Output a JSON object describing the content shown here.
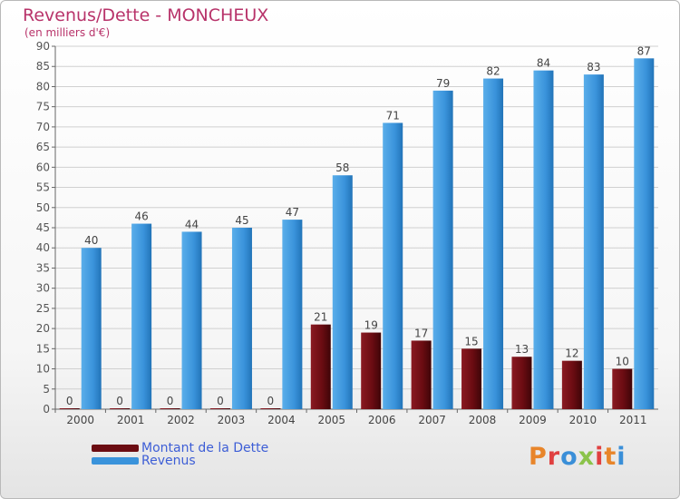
{
  "header": {
    "title": "Revenus/Dette - MONCHEUX",
    "subtitle": "(en milliers d'€)"
  },
  "legend": {
    "items": [
      {
        "label": "Montant de la Dette",
        "color": "#6b0c12"
      },
      {
        "label": "Revenus",
        "color": "#3a93db"
      }
    ]
  },
  "logo": {
    "text": "Proxiti",
    "p": "P",
    "r": "r",
    "o": "o",
    "x": "x",
    "i": "i",
    "t": "t",
    "i2": "i"
  },
  "colors": {
    "debt": "#6b0c12",
    "revenue": "#3a93db",
    "title": "#b8336a",
    "grid": "#d0d0d0"
  },
  "chart_data": {
    "type": "bar",
    "title": "Revenus/Dette - MONCHEUX",
    "ylabel": "(en milliers d'€)",
    "categories": [
      "2000",
      "2001",
      "2002",
      "2003",
      "2004",
      "2005",
      "2006",
      "2007",
      "2008",
      "2009",
      "2010",
      "2011"
    ],
    "series": [
      {
        "name": "Montant de la Dette",
        "values": [
          0,
          0,
          0,
          0,
          0,
          21,
          19,
          17,
          15,
          13,
          12,
          10
        ]
      },
      {
        "name": "Revenus",
        "values": [
          40,
          46,
          44,
          45,
          47,
          58,
          71,
          79,
          82,
          84,
          83,
          87
        ]
      }
    ],
    "ylim": [
      0,
      90
    ],
    "yticks": [
      0,
      5,
      10,
      15,
      20,
      25,
      30,
      35,
      40,
      45,
      50,
      55,
      60,
      65,
      70,
      75,
      80,
      85,
      90
    ],
    "grid": true,
    "legend_position": "bottom-left"
  }
}
